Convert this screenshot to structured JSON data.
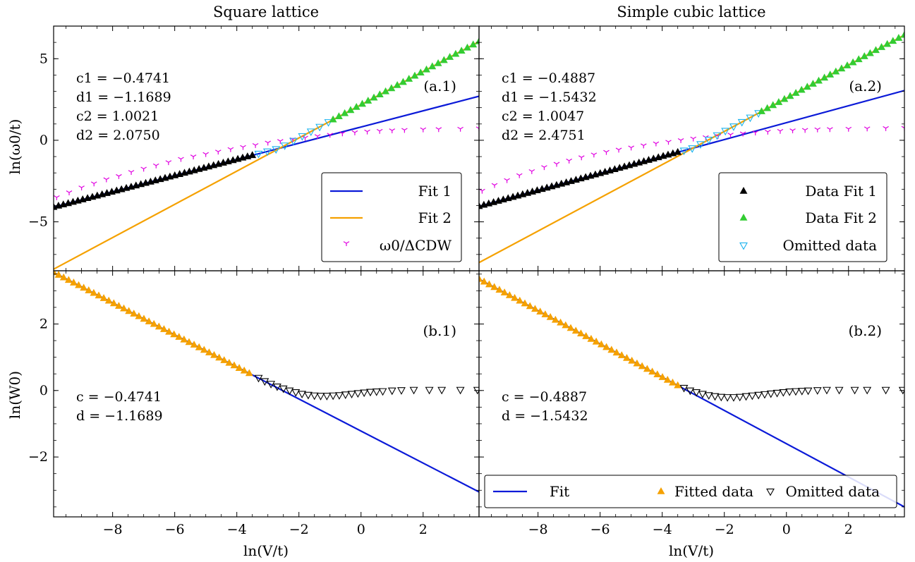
{
  "figure": {
    "col_titles": [
      "Square lattice",
      "Simple cubic lattice"
    ],
    "ylabel_top": "ln(ω0/t)",
    "ylabel_bottom": "ln(W0)",
    "xlabel": "ln(V/t)"
  },
  "colors": {
    "fit1": "#0b1ad8",
    "fit2": "#f5a100",
    "data_fit1": "#000000",
    "data_fit2": "#33cc33",
    "omitted_top": "#1ab2ee",
    "ratio": "#e000e0",
    "fitted_bottom": "#f5a100",
    "omitted_bottom": "#000000"
  },
  "chart_data": [
    {
      "type": "line",
      "panel": "(a.1)",
      "xlim": [
        -9.9,
        3.8
      ],
      "ylim": [
        -8.0,
        7.0
      ],
      "xticks": [
        -8,
        -6,
        -4,
        -2,
        0,
        2
      ],
      "yticks": [
        -5,
        0,
        5
      ],
      "annotations": [
        "c1 = −0.4741",
        "d1 = −1.1689",
        "c2 = 1.0021",
        "d2 = 2.0750"
      ],
      "legend": [
        "Fit 1",
        "Fit 2",
        "ω0/ΔCDW"
      ],
      "legend_position": "lower-right",
      "fits": [
        {
          "name": "Fit 1",
          "slope": -0.4741,
          "intercept": -1.1689
        },
        {
          "name": "Fit 2",
          "slope": 1.0021,
          "intercept": 2.075
        }
      ],
      "data_fit1": {
        "x_range": [
          -9.9,
          -3.5
        ],
        "count": 42
      },
      "omitted": {
        "x_range": [
          -3.3,
          -1.05
        ],
        "count": 9
      },
      "data_fit2": {
        "x_range": [
          -0.9,
          3.8
        ],
        "count": 26
      },
      "ratio_points": [
        [
          -9.8,
          -3.5
        ],
        [
          -9.4,
          -3.2
        ],
        [
          -9.0,
          -2.9
        ],
        [
          -8.6,
          -2.65
        ],
        [
          -8.2,
          -2.4
        ],
        [
          -7.8,
          -2.2
        ],
        [
          -7.4,
          -1.95
        ],
        [
          -7.0,
          -1.75
        ],
        [
          -6.6,
          -1.55
        ],
        [
          -6.2,
          -1.35
        ],
        [
          -5.8,
          -1.15
        ],
        [
          -5.4,
          -1.0
        ],
        [
          -5.0,
          -0.85
        ],
        [
          -4.6,
          -0.7
        ],
        [
          -4.2,
          -0.55
        ],
        [
          -3.8,
          -0.42
        ],
        [
          -3.4,
          -0.3
        ],
        [
          -3.0,
          -0.15
        ],
        [
          -2.6,
          -0.05
        ],
        [
          -2.2,
          0.05
        ],
        [
          -1.8,
          0.15
        ],
        [
          -1.4,
          0.25
        ],
        [
          -1.0,
          0.33
        ],
        [
          -0.6,
          0.42
        ],
        [
          -0.2,
          0.48
        ],
        [
          0.2,
          0.53
        ],
        [
          0.6,
          0.57
        ],
        [
          1.0,
          0.6
        ],
        [
          1.4,
          0.63
        ],
        [
          2.0,
          0.66
        ],
        [
          2.5,
          0.68
        ],
        [
          3.2,
          0.7
        ],
        [
          3.8,
          0.72
        ]
      ]
    },
    {
      "type": "line",
      "panel": "(a.2)",
      "xlim": [
        -9.9,
        3.8
      ],
      "ylim": [
        -8.0,
        7.0
      ],
      "xticks": [
        -8,
        -6,
        -4,
        -2,
        0,
        2
      ],
      "yticks": [
        -5,
        0,
        5
      ],
      "annotations": [
        "c1 = −0.4887",
        "d1 = −1.5432",
        "c2 = 1.0047",
        "d2 = 2.4751"
      ],
      "legend": [
        "Data Fit 1",
        "Data Fit 2",
        "Omitted data"
      ],
      "legend_position": "lower-right",
      "fits": [
        {
          "name": "Fit 1",
          "slope": -0.4887,
          "intercept": -1.5432
        },
        {
          "name": "Fit 2",
          "slope": 1.0047,
          "intercept": 2.4751
        }
      ],
      "data_fit1": {
        "x_range": [
          -9.9,
          -3.5
        ],
        "count": 42
      },
      "omitted": {
        "x_range": [
          -3.3,
          -0.9
        ],
        "count": 10
      },
      "data_fit2": {
        "x_range": [
          -0.8,
          3.8
        ],
        "count": 26
      },
      "ratio_points": [
        [
          -9.8,
          -3.1
        ],
        [
          -9.4,
          -2.75
        ],
        [
          -9.0,
          -2.45
        ],
        [
          -8.6,
          -2.15
        ],
        [
          -8.2,
          -1.9
        ],
        [
          -7.8,
          -1.65
        ],
        [
          -7.4,
          -1.45
        ],
        [
          -7.0,
          -1.25
        ],
        [
          -6.6,
          -1.05
        ],
        [
          -6.2,
          -0.88
        ],
        [
          -5.8,
          -0.72
        ],
        [
          -5.4,
          -0.58
        ],
        [
          -5.0,
          -0.45
        ],
        [
          -4.6,
          -0.32
        ],
        [
          -4.2,
          -0.2
        ],
        [
          -3.8,
          -0.1
        ],
        [
          -3.4,
          0.0
        ],
        [
          -3.0,
          0.1
        ],
        [
          -2.6,
          0.18
        ],
        [
          -2.2,
          0.26
        ],
        [
          -1.8,
          0.34
        ],
        [
          -1.4,
          0.41
        ],
        [
          -1.0,
          0.47
        ],
        [
          -0.6,
          0.52
        ],
        [
          -0.2,
          0.57
        ],
        [
          0.2,
          0.6
        ],
        [
          0.6,
          0.63
        ],
        [
          1.0,
          0.66
        ],
        [
          1.4,
          0.68
        ],
        [
          2.0,
          0.7
        ],
        [
          2.6,
          0.72
        ],
        [
          3.2,
          0.74
        ],
        [
          3.8,
          0.75
        ]
      ]
    },
    {
      "type": "line",
      "panel": "(b.1)",
      "xlim": [
        -9.9,
        3.8
      ],
      "ylim": [
        -3.8,
        3.6
      ],
      "xticks": [
        -8,
        -6,
        -4,
        -2,
        0,
        2
      ],
      "yticks": [
        -2,
        0,
        2
      ],
      "annotations": [
        "c = −0.4741",
        "d = −1.1689"
      ],
      "legend": [],
      "fits": [
        {
          "name": "Fit",
          "slope": -0.4741,
          "intercept": -1.1689
        }
      ],
      "fitted": {
        "x_range": [
          -9.9,
          -3.6
        ],
        "count": 40
      },
      "omitted_points": [
        [
          -3.3,
          0.38
        ],
        [
          -3.1,
          0.28
        ],
        [
          -2.9,
          0.2
        ],
        [
          -2.7,
          0.12
        ],
        [
          -2.5,
          0.06
        ],
        [
          -2.3,
          0.0
        ],
        [
          -2.1,
          -0.05
        ],
        [
          -1.9,
          -0.1
        ],
        [
          -1.7,
          -0.13
        ],
        [
          -1.5,
          -0.15
        ],
        [
          -1.3,
          -0.16
        ],
        [
          -1.1,
          -0.16
        ],
        [
          -0.9,
          -0.15
        ],
        [
          -0.7,
          -0.14
        ],
        [
          -0.5,
          -0.12
        ],
        [
          -0.3,
          -0.1
        ],
        [
          -0.1,
          -0.08
        ],
        [
          0.1,
          -0.06
        ],
        [
          0.3,
          -0.04
        ],
        [
          0.5,
          -0.03
        ],
        [
          0.7,
          -0.02
        ],
        [
          1.0,
          0.0
        ],
        [
          1.3,
          0.01
        ],
        [
          1.7,
          0.02
        ],
        [
          2.2,
          0.02
        ],
        [
          2.6,
          0.02
        ],
        [
          3.2,
          0.02
        ],
        [
          3.75,
          0.02
        ]
      ]
    },
    {
      "type": "line",
      "panel": "(b.2)",
      "xlim": [
        -9.9,
        3.8
      ],
      "ylim": [
        -3.8,
        3.6
      ],
      "xticks": [
        -8,
        -6,
        -4,
        -2,
        0,
        2
      ],
      "yticks": [
        -2,
        0,
        2
      ],
      "annotations": [
        "c = −0.4887",
        "d = −1.5432"
      ],
      "legend": [
        "Fit",
        "Fitted data",
        "Omitted data"
      ],
      "legend_position": "bottom",
      "fits": [
        {
          "name": "Fit",
          "slope": -0.4887,
          "intercept": -1.5432
        }
      ],
      "fitted": {
        "x_range": [
          -9.9,
          -3.5
        ],
        "count": 40
      },
      "omitted_points": [
        [
          -3.3,
          0.08
        ],
        [
          -3.1,
          0.0
        ],
        [
          -2.9,
          -0.05
        ],
        [
          -2.7,
          -0.1
        ],
        [
          -2.5,
          -0.14
        ],
        [
          -2.3,
          -0.17
        ],
        [
          -2.1,
          -0.19
        ],
        [
          -1.9,
          -0.2
        ],
        [
          -1.7,
          -0.2
        ],
        [
          -1.5,
          -0.19
        ],
        [
          -1.3,
          -0.17
        ],
        [
          -1.1,
          -0.15
        ],
        [
          -0.9,
          -0.13
        ],
        [
          -0.7,
          -0.11
        ],
        [
          -0.5,
          -0.09
        ],
        [
          -0.3,
          -0.07
        ],
        [
          -0.1,
          -0.05
        ],
        [
          0.1,
          -0.03
        ],
        [
          0.3,
          -0.02
        ],
        [
          0.5,
          -0.01
        ],
        [
          0.7,
          0.0
        ],
        [
          1.0,
          0.01
        ],
        [
          1.3,
          0.02
        ],
        [
          1.7,
          0.02
        ],
        [
          2.2,
          0.02
        ],
        [
          2.6,
          0.02
        ],
        [
          3.2,
          0.02
        ],
        [
          3.75,
          0.02
        ]
      ]
    }
  ]
}
